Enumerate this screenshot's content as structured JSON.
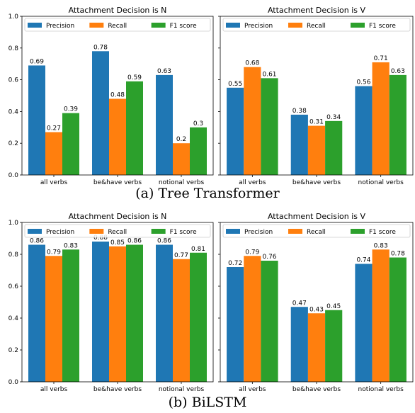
{
  "legend_labels": [
    "Precision",
    "Recall",
    "F1 score"
  ],
  "colors": [
    "#1f77b4",
    "#ff7f0e",
    "#2ca02c"
  ],
  "captions": {
    "a": "(a)  Tree Transformer",
    "b": "(b)  BiLSTM"
  },
  "chart_data": [
    {
      "type": "bar",
      "title": "Attachment Decision is N",
      "categories": [
        "all verbs",
        "be&have verbs",
        "notional verbs"
      ],
      "series": [
        {
          "name": "Precision",
          "values": [
            0.69,
            0.78,
            0.63
          ]
        },
        {
          "name": "Recall",
          "values": [
            0.27,
            0.48,
            0.2
          ]
        },
        {
          "name": "F1 score",
          "values": [
            0.39,
            0.59,
            0.3
          ]
        }
      ],
      "ylim": [
        0,
        1.0
      ],
      "yticks": [
        "0.0",
        "0.2",
        "0.4",
        "0.6",
        "0.8",
        "1.0"
      ],
      "legend": "top-left"
    },
    {
      "type": "bar",
      "title": "Attachment Decision is V",
      "categories": [
        "all verbs",
        "be&have verbs",
        "notional verbs"
      ],
      "series": [
        {
          "name": "Precision",
          "values": [
            0.55,
            0.38,
            0.56
          ]
        },
        {
          "name": "Recall",
          "values": [
            0.68,
            0.31,
            0.71
          ]
        },
        {
          "name": "F1 score",
          "values": [
            0.61,
            0.34,
            0.63
          ]
        }
      ],
      "ylim": [
        0,
        1.0
      ],
      "yticks": [],
      "legend": "top-left"
    },
    {
      "type": "bar",
      "title": "Attachment Decision is N",
      "categories": [
        "all verbs",
        "be&have verbs",
        "notional verbs"
      ],
      "series": [
        {
          "name": "Precision",
          "values": [
            0.86,
            0.88,
            0.86
          ]
        },
        {
          "name": "Recall",
          "values": [
            0.79,
            0.85,
            0.77
          ]
        },
        {
          "name": "F1 score",
          "values": [
            0.83,
            0.86,
            0.81
          ]
        }
      ],
      "ylim": [
        0,
        1.0
      ],
      "yticks": [
        "0.0",
        "0.2",
        "0.4",
        "0.6",
        "0.8",
        "1.0"
      ],
      "legend": "top-left"
    },
    {
      "type": "bar",
      "title": "Attachment Decision is V",
      "categories": [
        "all verbs",
        "be&have verbs",
        "notional verbs"
      ],
      "series": [
        {
          "name": "Precision",
          "values": [
            0.72,
            0.47,
            0.74
          ]
        },
        {
          "name": "Recall",
          "values": [
            0.79,
            0.43,
            0.83
          ]
        },
        {
          "name": "F1 score",
          "values": [
            0.76,
            0.45,
            0.78
          ]
        }
      ],
      "ylim": [
        0,
        1.0
      ],
      "yticks": [],
      "legend": "top-left"
    }
  ]
}
